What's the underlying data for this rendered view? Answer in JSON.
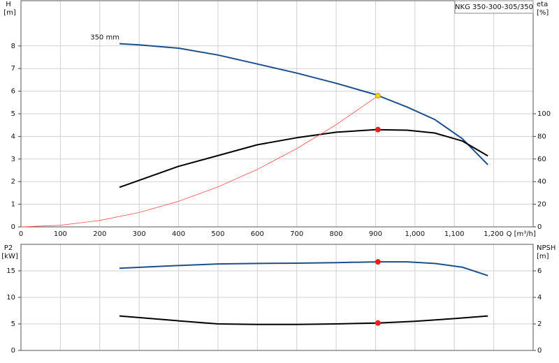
{
  "chart_data": [
    {
      "type": "line",
      "title": "NKG 350-300-305/350",
      "xlabel": "Q [m³/h]",
      "ylabel": "H",
      "yunit": "[m]",
      "y2label": "eta",
      "y2unit": "[%]",
      "xlim": [
        0,
        1300
      ],
      "ylim": [
        0,
        10
      ],
      "y2lim": [
        0,
        200
      ],
      "xticks": [
        0,
        100,
        200,
        300,
        400,
        500,
        600,
        700,
        800,
        900,
        {
          "value": 1000,
          "label": "1,000"
        },
        {
          "value": 1100,
          "label": "1,100"
        },
        {
          "value": 1200,
          "label": "1,200"
        }
      ],
      "yticks": [
        0,
        1,
        2,
        3,
        4,
        5,
        6,
        7,
        8
      ],
      "y2ticks": [
        0,
        20,
        40,
        60,
        80,
        100
      ],
      "grid": true,
      "series": [
        {
          "name": "350 mm",
          "color": "#1b4f8a",
          "width": 2,
          "x": [
            250,
            300,
            400,
            500,
            600,
            700,
            800,
            900,
            980,
            1050,
            1120,
            1185
          ],
          "values": [
            8.1,
            8.05,
            7.9,
            7.6,
            7.2,
            6.8,
            6.35,
            5.85,
            5.3,
            4.75,
            3.9,
            2.75
          ]
        },
        {
          "color": "#000000",
          "width": 2,
          "axis": "y2",
          "x": [
            250,
            400,
            500,
            600,
            700,
            800,
            900,
            980,
            1050,
            1120,
            1185
          ],
          "values": [
            35,
            53.5,
            63,
            72.6,
            78.8,
            83.7,
            86,
            85.5,
            83,
            76,
            62.7
          ]
        },
        {
          "color": "#ff4d4d",
          "width": 0.8,
          "x": [
            0,
            100,
            200,
            300,
            400,
            500,
            600,
            700,
            800,
            900,
            906
          ],
          "values": [
            0,
            0.071,
            0.283,
            0.636,
            1.13,
            1.77,
            2.54,
            3.46,
            4.52,
            5.72,
            5.8
          ]
        }
      ],
      "points": [
        {
          "x": 906,
          "y": 5.8,
          "color": "#ffd21f"
        },
        {
          "x": 906,
          "y": 86,
          "color": "#ff1a1a",
          "axis": "y2"
        }
      ]
    },
    {
      "type": "line",
      "ylabel": "P2",
      "yunit": "[kW]",
      "y2label": "NPSH",
      "y2unit": "[m]",
      "xlim": [
        0,
        1300
      ],
      "ylim": [
        0,
        20
      ],
      "y2lim": [
        0,
        8
      ],
      "xticks": [
        0,
        100,
        200,
        300,
        400,
        500,
        600,
        700,
        800,
        900,
        1000,
        1100,
        1200
      ],
      "xticklabels": false,
      "yticks": [
        0,
        5,
        10,
        15
      ],
      "y2ticks": [
        0,
        2,
        4,
        6
      ],
      "grid": true,
      "series": [
        {
          "color": "#1b4f8a",
          "width": 2,
          "x": [
            250,
            400,
            500,
            600,
            700,
            800,
            906,
            980,
            1050,
            1120,
            1185
          ],
          "values": [
            15.5,
            16.0,
            16.3,
            16.4,
            16.45,
            16.55,
            16.7,
            16.7,
            16.4,
            15.7,
            14.1
          ]
        },
        {
          "color": "#000000",
          "width": 2,
          "axis": "y2",
          "x": [
            250,
            400,
            500,
            600,
            700,
            800,
            906,
            1000,
            1100,
            1185
          ],
          "values": [
            2.6,
            2.23,
            2.0,
            1.96,
            1.96,
            2.0,
            2.07,
            2.2,
            2.4,
            2.6
          ]
        }
      ],
      "points": [
        {
          "x": 906,
          "y": 16.7,
          "color": "#ff1a1a"
        },
        {
          "x": 906,
          "y": 2.07,
          "color": "#ff1a1a",
          "axis": "y2"
        }
      ]
    }
  ]
}
